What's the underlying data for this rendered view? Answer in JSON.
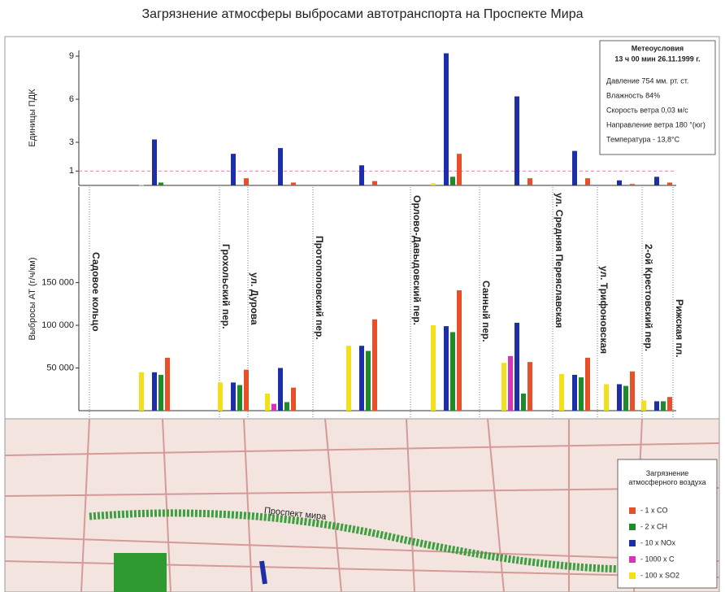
{
  "title": "Загрязнение атмосферы выбросами автотранспорта на Проспекте Мира",
  "streets": [
    "Садовое кольцо",
    "Грохольский пер.",
    "ул. Дурова",
    "Протопоповский пер.",
    "Орлово-Давыдовский пер.",
    "Санный пер.",
    "ул. Средняя Переяславская",
    "ул. Трифоновская",
    "2-ой Крестовский пер.",
    "Рижская пл."
  ],
  "meteo": {
    "title": "Метеоусловия",
    "time": "13 ч 00 мин 26.11.1999 г.",
    "lines": [
      "Давление 754 мм. рт. ст.",
      "Влажность 84%",
      "Скорость ветра 0,03 м/с",
      "Направление ветра 180 °(юг)",
      "Температура   - 13,8°С"
    ]
  },
  "map_label": "Проспект мира",
  "legend_title": "Загрязнение атмосферного воздуха",
  "chart_data": [
    {
      "type": "bar",
      "y_label": "Единицы ПДК",
      "ylim": [
        0,
        9.4
      ],
      "yticks": [
        1,
        3,
        6,
        9
      ],
      "threshold": 1,
      "series": [
        {
          "color": "#f2e01c",
          "values": [
            0.05,
            null,
            null,
            null,
            0.15,
            null,
            null,
            null,
            null
          ]
        },
        {
          "color": "#d633b8",
          "values": [
            null,
            null,
            null,
            null,
            null,
            null,
            null,
            null,
            null
          ]
        },
        {
          "color": "#1c2fa8",
          "values": [
            3.2,
            2.2,
            2.6,
            1.4,
            9.2,
            6.2,
            2.4,
            0.35,
            0.6
          ]
        },
        {
          "color": "#1e8a2a",
          "values": [
            0.2,
            null,
            null,
            null,
            0.6,
            null,
            null,
            null,
            null
          ]
        },
        {
          "color": "#e8502a",
          "values": [
            null,
            0.5,
            0.2,
            0.3,
            2.2,
            0.5,
            0.5,
            0.1,
            0.2
          ]
        }
      ]
    },
    {
      "type": "bar",
      "y_label": "Выбросы АТ (г/ч/км)",
      "ylim": [
        0,
        262000
      ],
      "yticks": [
        {
          "value": 50000,
          "label": "50 000"
        },
        {
          "value": 100000,
          "label": "100 000"
        },
        {
          "value": 150000,
          "label": "150 000"
        }
      ],
      "series": [
        {
          "name": "- 100 x SO2",
          "color": "#f2e01c",
          "values": [
            45000,
            33000,
            20000,
            76000,
            100000,
            56000,
            43000,
            31000,
            12000
          ]
        },
        {
          "name": "- 1000 x C",
          "color": "#d633b8",
          "values": [
            null,
            null,
            8000,
            null,
            null,
            64000,
            null,
            null,
            null
          ]
        },
        {
          "name": "- 10 x NOx",
          "color": "#1c2fa8",
          "values": [
            45000,
            33000,
            50000,
            76000,
            99000,
            103000,
            42000,
            31000,
            11000
          ]
        },
        {
          "name": "- 2 x CH",
          "color": "#1e8a2a",
          "values": [
            42000,
            30000,
            10000,
            70000,
            92000,
            20000,
            39000,
            29000,
            11000
          ]
        },
        {
          "name": "- 1 x CO",
          "color": "#e8502a",
          "values": [
            62000,
            48000,
            27000,
            107000,
            141000,
            57000,
            62000,
            46000,
            16000
          ]
        }
      ]
    }
  ]
}
